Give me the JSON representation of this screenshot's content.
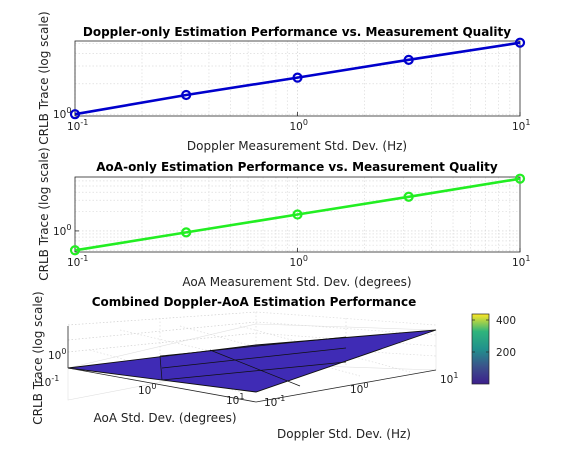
{
  "chart_data": [
    {
      "type": "line",
      "title": "Doppler-only Estimation Performance vs. Measurement Quality",
      "xlabel": "Doppler Measurement Std. Dev. (Hz)",
      "ylabel": "CRLB Trace (log scale)",
      "xscale": "log",
      "yscale": "log",
      "xlim": [
        0.1,
        10
      ],
      "grid": true,
      "color": "#0000cc",
      "x_ticks": [
        {
          "value": 0.1,
          "base": "10",
          "exp": "-1"
        },
        {
          "value": 1,
          "base": "10",
          "exp": "0"
        },
        {
          "value": 10,
          "base": "10",
          "exp": "1"
        }
      ],
      "y_ticks": [
        {
          "value": 1,
          "base": "10",
          "exp": "0"
        }
      ],
      "x": [
        0.1,
        0.316,
        1,
        3.16,
        10
      ],
      "values": [
        1.0,
        1.55,
        2.3,
        3.45,
        5.1
      ]
    },
    {
      "type": "line",
      "title": "AoA-only Estimation Performance vs. Measurement Quality",
      "xlabel": "AoA Measurement Std. Dev. (degrees)",
      "ylabel": "CRLB Trace (log scale)",
      "xscale": "log",
      "yscale": "log",
      "xlim": [
        0.1,
        10
      ],
      "grid": true,
      "color": "#22ee22",
      "x_ticks": [
        {
          "value": 0.1,
          "base": "10",
          "exp": "-1"
        },
        {
          "value": 1,
          "base": "10",
          "exp": "0"
        },
        {
          "value": 10,
          "base": "10",
          "exp": "1"
        }
      ],
      "y_ticks": [
        {
          "value": 1,
          "base": "10",
          "exp": "0"
        }
      ],
      "x": [
        0.1,
        0.316,
        1,
        3.16,
        10
      ],
      "values": [
        0.5,
        0.95,
        1.8,
        3.4,
        6.5
      ]
    },
    {
      "type": "surface",
      "title": "Combined Doppler-AoA Estimation Performance",
      "xlabel": "AoA Std. Dev. (degrees)",
      "ylabel": "Doppler Std. Dev. (Hz)",
      "zlabel": "CRLB Trace (log scale)",
      "xscale": "log",
      "yscale": "log",
      "zscale": "log",
      "x_ticks": [
        {
          "value": 0.1,
          "base": "10",
          "exp": "-1"
        },
        {
          "value": 1,
          "base": "10",
          "exp": "0"
        },
        {
          "value": 10,
          "base": "10",
          "exp": "1"
        }
      ],
      "y_ticks": [
        {
          "value": 0.1,
          "base": "10",
          "exp": "-1"
        },
        {
          "value": 1,
          "base": "10",
          "exp": "0"
        },
        {
          "value": 10,
          "base": "10",
          "exp": "1"
        }
      ],
      "z_ticks": [
        {
          "value": 1,
          "base": "10",
          "exp": "0"
        }
      ],
      "colorbar": {
        "ticks": [
          "400",
          "200"
        ],
        "colors": [
          "#fde725",
          "#2fb47c",
          "#21918c",
          "#3b528b",
          "#3d1e8c"
        ]
      },
      "surface_color": "#3f2bb5"
    }
  ]
}
